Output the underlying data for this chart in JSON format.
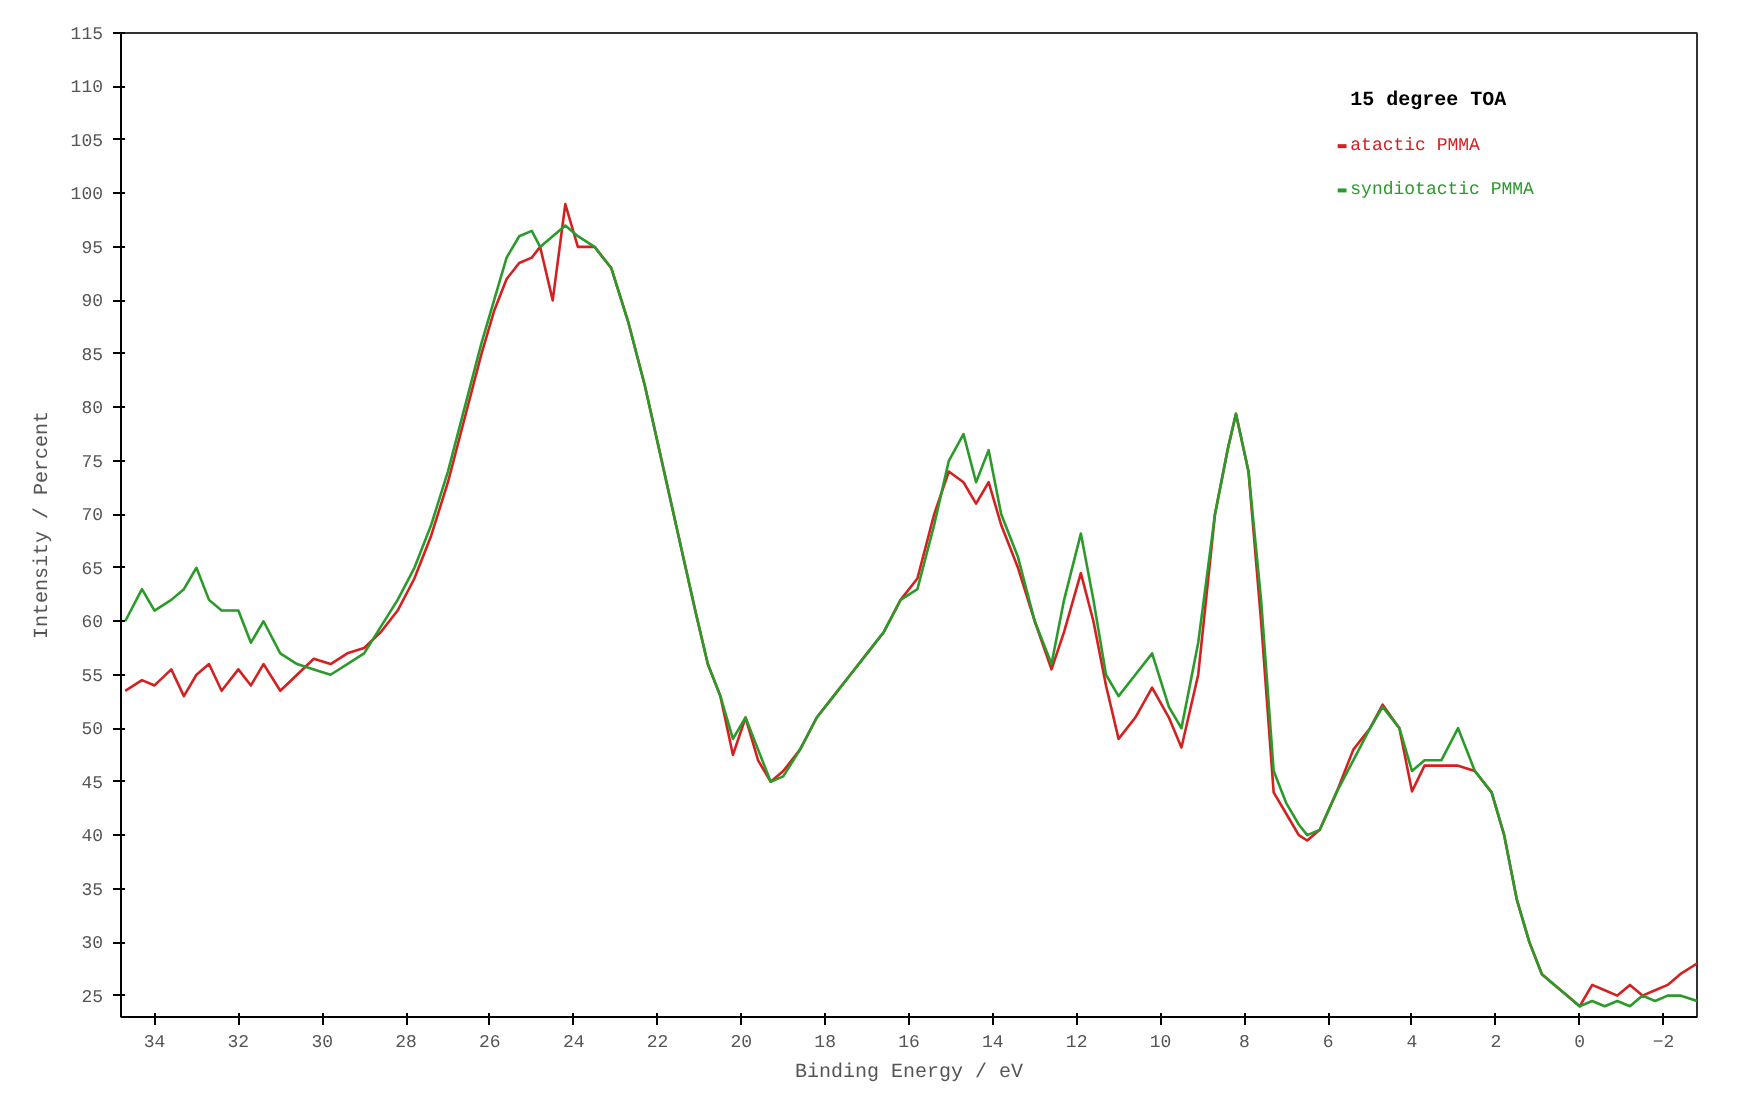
{
  "chart_data": {
    "type": "line",
    "xlabel": "Binding Energy / eV",
    "ylabel": "Intensity / Percent",
    "legend_title": "15 degree TOA",
    "legend": "top right",
    "grid": false,
    "xlim": [
      34.8,
      -2.8
    ],
    "ylim": [
      23,
      115
    ],
    "xticks": [
      34,
      32,
      30,
      28,
      26,
      24,
      22,
      20,
      18,
      16,
      14,
      12,
      10,
      8,
      6,
      4,
      2,
      0,
      -2
    ],
    "yticks": [
      25,
      30,
      35,
      40,
      45,
      50,
      55,
      60,
      65,
      70,
      75,
      80,
      85,
      90,
      95,
      100,
      105,
      110,
      115
    ],
    "x": [
      34.7,
      34.3,
      34,
      33.6,
      33.3,
      33,
      32.7,
      32.4,
      32,
      31.7,
      31.4,
      31,
      30.6,
      30.2,
      29.8,
      29.4,
      29,
      28.6,
      28.2,
      27.8,
      27.4,
      27,
      26.6,
      26.2,
      25.9,
      25.6,
      25.3,
      25,
      24.8,
      24.5,
      24.2,
      23.9,
      23.5,
      23.1,
      22.7,
      22.3,
      21.9,
      21.5,
      21.1,
      20.8,
      20.5,
      20.2,
      19.9,
      19.6,
      19.3,
      19,
      18.6,
      18.2,
      17.8,
      17.4,
      17,
      16.6,
      16.2,
      15.8,
      15.4,
      15.05,
      14.7,
      14.4,
      14.1,
      13.8,
      13.4,
      13,
      12.6,
      12.3,
      11.9,
      11.6,
      11.3,
      11,
      10.6,
      10.2,
      9.8,
      9.5,
      9.1,
      8.7,
      8.4,
      8.2,
      7.9,
      7.6,
      7.3,
      7,
      6.7,
      6.5,
      6.2,
      5.8,
      5.4,
      5,
      4.7,
      4.3,
      4,
      3.7,
      3.3,
      2.9,
      2.5,
      2.1,
      1.8,
      1.5,
      1.2,
      0.9,
      0.6,
      0.3,
      0,
      -0.3,
      -0.6,
      -0.9,
      -1.2,
      -1.5,
      -1.8,
      -2.1,
      -2.4,
      -2.8
    ],
    "series": [
      {
        "name": "atactic PMMA",
        "color": "#d42020",
        "values": [
          53.5,
          54.5,
          54,
          55.5,
          53,
          55,
          56,
          53.5,
          55.5,
          54,
          56,
          53.5,
          55,
          56.5,
          56,
          57,
          57.5,
          59,
          61,
          64,
          68,
          73,
          79,
          85,
          89,
          92,
          93.5,
          94,
          95,
          90,
          99,
          95,
          95,
          93,
          88,
          82,
          75,
          68,
          61,
          56,
          53,
          47.5,
          51,
          47,
          45,
          46,
          48,
          51,
          53,
          55,
          57,
          59,
          62,
          64,
          70,
          74,
          73,
          71,
          73,
          69,
          65,
          60,
          55.5,
          59,
          64.5,
          60,
          54,
          49,
          51,
          53.8,
          51,
          48.2,
          55,
          70,
          76,
          79.4,
          74,
          60,
          44,
          42,
          40,
          39.5,
          40.5,
          44,
          48,
          50,
          52.2,
          50,
          44.1,
          46.5,
          46.5,
          46.5,
          46,
          44,
          40,
          34,
          30,
          27,
          26,
          25,
          24,
          26,
          25.5,
          25,
          26,
          25,
          25.5,
          26,
          27,
          28
        ]
      },
      {
        "name": "syndiotactic PMMA",
        "color": "#2a9a2a",
        "values": [
          60,
          63,
          61,
          62,
          63,
          65,
          62,
          61,
          61,
          58,
          60,
          57,
          56,
          55.5,
          55,
          56,
          57,
          59.5,
          62,
          65,
          69,
          74,
          80,
          86,
          90,
          94,
          96,
          96.5,
          95,
          96,
          97,
          96,
          95,
          93,
          88,
          82,
          75,
          68,
          61,
          56,
          53,
          49,
          51,
          48,
          45,
          45.5,
          48,
          51,
          53,
          55,
          57,
          59,
          62,
          63,
          69,
          75,
          77.5,
          73,
          76,
          70,
          66,
          60,
          56,
          62,
          68.2,
          62,
          55,
          53,
          55,
          57,
          52,
          50,
          58,
          70,
          76,
          79.4,
          74,
          62,
          46,
          43,
          41,
          40,
          40.5,
          44,
          47,
          50,
          52,
          50,
          46,
          47,
          47,
          50,
          46,
          44,
          40,
          34,
          30,
          27,
          26,
          25,
          24,
          24.5,
          24,
          24.5,
          24,
          25,
          24.5,
          25,
          25,
          24.5
        ]
      }
    ]
  }
}
